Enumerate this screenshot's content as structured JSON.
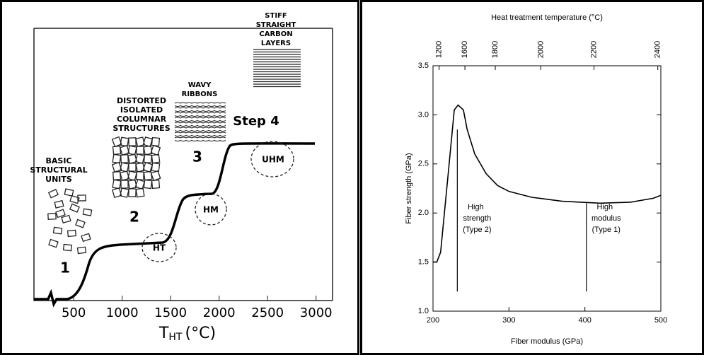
{
  "chart_data": [
    {
      "type": "schematic",
      "x_label": "T",
      "x_label_sub": "HT",
      "x_label_unit": "(°C)",
      "xlim": [
        90,
        3170
      ],
      "xticks": [
        500,
        1000,
        1500,
        2000,
        2500,
        3000
      ],
      "annotations": [
        {
          "lines": [
            "BASIC",
            "STRUCTURAL",
            "UNITS"
          ]
        },
        {
          "lines": [
            "DISTORTED",
            "ISOLATED",
            "COLUMNAR",
            "STRUCTURES"
          ]
        },
        {
          "lines": [
            "WAVY",
            "RIBBONS"
          ]
        },
        {
          "lines": [
            "STIFF",
            "STRAIGHT",
            "CARBON",
            "LAYERS"
          ]
        },
        {
          "lines": [
            "1"
          ]
        },
        {
          "lines": [
            "2"
          ]
        },
        {
          "lines": [
            "3"
          ]
        },
        {
          "lines": [
            "Step 4"
          ]
        },
        {
          "lines": [
            "HT"
          ]
        },
        {
          "lines": [
            "HM"
          ]
        },
        {
          "lines": [
            "UHM"
          ]
        }
      ]
    },
    {
      "type": "line",
      "title": "Heat treatment temperature (°C)",
      "x_label": "Fiber modulus (GPa)",
      "y_label": "Fiber strength (GPa)",
      "xlim": [
        200,
        500
      ],
      "xticks": [
        200,
        300,
        400,
        500
      ],
      "ylim": [
        1,
        3.5
      ],
      "yticks": [
        {
          "value": 1,
          "label": "1.0"
        },
        1.5,
        {
          "value": 2,
          "label": "2.0"
        },
        2.5,
        {
          "value": 3,
          "label": "3.0"
        },
        3.5
      ],
      "x2ticks": [
        {
          "value": 208,
          "label": "1200"
        },
        {
          "value": 242,
          "label": "1600"
        },
        {
          "value": 282,
          "label": "1800"
        },
        {
          "value": 342,
          "label": "2000"
        },
        {
          "value": 412,
          "label": "2200"
        },
        {
          "value": 496,
          "label": "2400"
        }
      ],
      "color": "#000000",
      "x": [
        200,
        205,
        210,
        220,
        228,
        233,
        240,
        245,
        255,
        270,
        285,
        300,
        330,
        370,
        420,
        460,
        490,
        500
      ],
      "values": [
        1.5,
        1.5,
        1.6,
        2.4,
        3.05,
        3.1,
        3.05,
        2.85,
        2.6,
        2.4,
        2.28,
        2.22,
        2.16,
        2.12,
        2.1,
        2.11,
        2.15,
        2.18
      ],
      "reference_lines": [
        {
          "x": 232,
          "y": [
            1.2,
            2.85
          ],
          "lines": [
            "High",
            "strength",
            "(Type 2)"
          ]
        },
        {
          "x": 402,
          "y": [
            1.2,
            2.1
          ],
          "lines": [
            "High",
            "modulus",
            "(Type 1)"
          ]
        }
      ]
    }
  ]
}
